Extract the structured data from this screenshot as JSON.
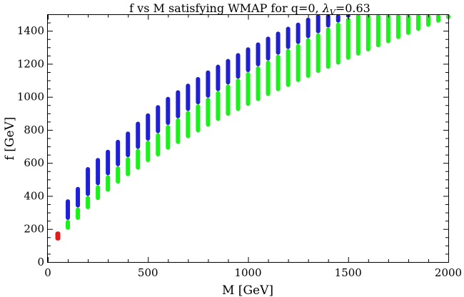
{
  "chart_data": {
    "type": "scatter",
    "title_main": "f vs M satisfying WMAP for q=0, ",
    "title_symbol": "λ",
    "title_subscript": "V",
    "title_tail": "=0.63",
    "xlabel": "M [GeV]",
    "ylabel": "f [GeV]",
    "xlim": [
      0,
      2000
    ],
    "ylim": [
      0,
      1500
    ],
    "x_ticks": [
      0,
      500,
      1000,
      1500,
      2000
    ],
    "x_tick_labels": [
      "0",
      "500",
      "1000",
      "1500",
      "2000"
    ],
    "y_ticks": [
      0,
      200,
      400,
      600,
      800,
      1000,
      1200,
      1400
    ],
    "y_tick_labels": [
      "0",
      "200",
      "400",
      "600",
      "800",
      "1000",
      "1200",
      "1400"
    ],
    "grid": false,
    "colors": {
      "green": "#17f217",
      "blue": "#1f1fd6",
      "red": "#e31a1a"
    },
    "series": [
      {
        "name": "red",
        "color": "red",
        "segments": [
          {
            "M": 50,
            "f_min": 130,
            "f_max": 185
          }
        ]
      },
      {
        "name": "green",
        "color": "green",
        "segments": [
          {
            "M": 100,
            "f_min": 195,
            "f_max": 255
          },
          {
            "M": 150,
            "f_min": 255,
            "f_max": 330
          },
          {
            "M": 200,
            "f_min": 320,
            "f_max": 400
          },
          {
            "M": 250,
            "f_min": 375,
            "f_max": 465
          },
          {
            "M": 300,
            "f_min": 425,
            "f_max": 525
          },
          {
            "M": 350,
            "f_min": 475,
            "f_max": 580
          },
          {
            "M": 400,
            "f_min": 520,
            "f_max": 635
          },
          {
            "M": 450,
            "f_min": 560,
            "f_max": 685
          },
          {
            "M": 500,
            "f_min": 605,
            "f_max": 735
          },
          {
            "M": 550,
            "f_min": 640,
            "f_max": 780
          },
          {
            "M": 600,
            "f_min": 680,
            "f_max": 830
          },
          {
            "M": 650,
            "f_min": 715,
            "f_max": 870
          },
          {
            "M": 700,
            "f_min": 750,
            "f_max": 915
          },
          {
            "M": 750,
            "f_min": 785,
            "f_max": 955
          },
          {
            "M": 800,
            "f_min": 820,
            "f_max": 995
          },
          {
            "M": 850,
            "f_min": 855,
            "f_max": 1035
          },
          {
            "M": 900,
            "f_min": 885,
            "f_max": 1075
          },
          {
            "M": 950,
            "f_min": 915,
            "f_max": 1110
          },
          {
            "M": 1000,
            "f_min": 945,
            "f_max": 1150
          },
          {
            "M": 1050,
            "f_min": 975,
            "f_max": 1185
          },
          {
            "M": 1100,
            "f_min": 1005,
            "f_max": 1220
          },
          {
            "M": 1150,
            "f_min": 1035,
            "f_max": 1255
          },
          {
            "M": 1200,
            "f_min": 1060,
            "f_max": 1290
          },
          {
            "M": 1250,
            "f_min": 1090,
            "f_max": 1320
          },
          {
            "M": 1300,
            "f_min": 1115,
            "f_max": 1355
          },
          {
            "M": 1350,
            "f_min": 1145,
            "f_max": 1385
          },
          {
            "M": 1400,
            "f_min": 1170,
            "f_max": 1420
          },
          {
            "M": 1450,
            "f_min": 1195,
            "f_max": 1450
          },
          {
            "M": 1500,
            "f_min": 1225,
            "f_max": 1480
          },
          {
            "M": 1550,
            "f_min": 1250,
            "f_max": 1500
          },
          {
            "M": 1600,
            "f_min": 1275,
            "f_max": 1500
          },
          {
            "M": 1650,
            "f_min": 1300,
            "f_max": 1500
          },
          {
            "M": 1700,
            "f_min": 1325,
            "f_max": 1500
          },
          {
            "M": 1750,
            "f_min": 1350,
            "f_max": 1500
          },
          {
            "M": 1800,
            "f_min": 1375,
            "f_max": 1500
          },
          {
            "M": 1850,
            "f_min": 1400,
            "f_max": 1500
          },
          {
            "M": 1900,
            "f_min": 1425,
            "f_max": 1500
          },
          {
            "M": 1950,
            "f_min": 1450,
            "f_max": 1500
          },
          {
            "M": 2000,
            "f_min": 1470,
            "f_max": 1500
          }
        ]
      },
      {
        "name": "blue",
        "color": "blue",
        "segments": [
          {
            "M": 100,
            "f_min": 255,
            "f_max": 380
          },
          {
            "M": 150,
            "f_min": 330,
            "f_max": 455
          },
          {
            "M": 200,
            "f_min": 400,
            "f_max": 575
          },
          {
            "M": 250,
            "f_min": 465,
            "f_max": 630
          },
          {
            "M": 300,
            "f_min": 525,
            "f_max": 680
          },
          {
            "M": 350,
            "f_min": 580,
            "f_max": 740
          },
          {
            "M": 400,
            "f_min": 635,
            "f_max": 790
          },
          {
            "M": 450,
            "f_min": 685,
            "f_max": 850
          },
          {
            "M": 500,
            "f_min": 735,
            "f_max": 900
          },
          {
            "M": 550,
            "f_min": 780,
            "f_max": 950
          },
          {
            "M": 600,
            "f_min": 830,
            "f_max": 1000
          },
          {
            "M": 650,
            "f_min": 870,
            "f_max": 1040
          },
          {
            "M": 700,
            "f_min": 915,
            "f_max": 1080
          },
          {
            "M": 750,
            "f_min": 955,
            "f_max": 1120
          },
          {
            "M": 800,
            "f_min": 995,
            "f_max": 1160
          },
          {
            "M": 850,
            "f_min": 1035,
            "f_max": 1195
          },
          {
            "M": 900,
            "f_min": 1075,
            "f_max": 1230
          },
          {
            "M": 950,
            "f_min": 1110,
            "f_max": 1265
          },
          {
            "M": 1000,
            "f_min": 1150,
            "f_max": 1300
          },
          {
            "M": 1050,
            "f_min": 1185,
            "f_max": 1330
          },
          {
            "M": 1100,
            "f_min": 1220,
            "f_max": 1365
          },
          {
            "M": 1150,
            "f_min": 1255,
            "f_max": 1395
          },
          {
            "M": 1200,
            "f_min": 1290,
            "f_max": 1425
          },
          {
            "M": 1250,
            "f_min": 1320,
            "f_max": 1450
          },
          {
            "M": 1300,
            "f_min": 1355,
            "f_max": 1480
          },
          {
            "M": 1350,
            "f_min": 1385,
            "f_max": 1500
          },
          {
            "M": 1400,
            "f_min": 1420,
            "f_max": 1500
          },
          {
            "M": 1450,
            "f_min": 1450,
            "f_max": 1500
          },
          {
            "M": 1500,
            "f_min": 1480,
            "f_max": 1500
          }
        ]
      }
    ]
  }
}
